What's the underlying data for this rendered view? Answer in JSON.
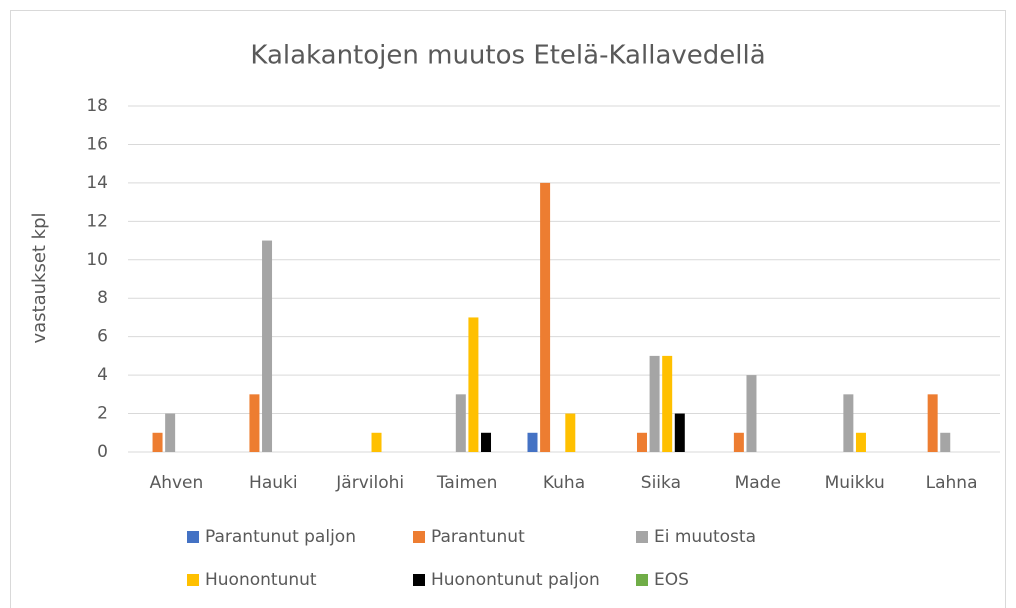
{
  "chart_data": {
    "type": "bar",
    "title": "Kalakantojen muutos Etelä-Kallavedellä",
    "y_label": "vastaukset kpl",
    "categories": [
      "Ahven",
      "Hauki",
      "Järvilohi",
      "Taimen",
      "Kuha",
      "Siika",
      "Made",
      "Muikku",
      "Lahna"
    ],
    "series": [
      {
        "name": "Parantunut paljon",
        "color": "#4472c4",
        "values": [
          0,
          0,
          0,
          0,
          1,
          0,
          0,
          0,
          0
        ]
      },
      {
        "name": "Parantunut",
        "color": "#ed7d31",
        "values": [
          1,
          3,
          0,
          0,
          14,
          1,
          1,
          0,
          3
        ]
      },
      {
        "name": "Ei muutosta",
        "color": "#a5a5a5",
        "values": [
          2,
          11,
          0,
          3,
          0,
          5,
          4,
          3,
          1
        ]
      },
      {
        "name": "Huonontunut",
        "color": "#ffc000",
        "values": [
          0,
          0,
          1,
          7,
          2,
          5,
          0,
          1,
          0
        ]
      },
      {
        "name": "Huonontunut paljon",
        "color": "#000000",
        "values": [
          0,
          0,
          0,
          1,
          0,
          2,
          0,
          0,
          0
        ]
      },
      {
        "name": "EOS",
        "color": "#70ad47",
        "values": [
          0,
          0,
          0,
          0,
          0,
          0,
          0,
          0,
          0
        ]
      }
    ],
    "ylim": [
      0,
      18
    ],
    "yticks": [
      0,
      2,
      4,
      6,
      8,
      10,
      12,
      14,
      16,
      18
    ],
    "grid": true,
    "legend": "bottom"
  }
}
